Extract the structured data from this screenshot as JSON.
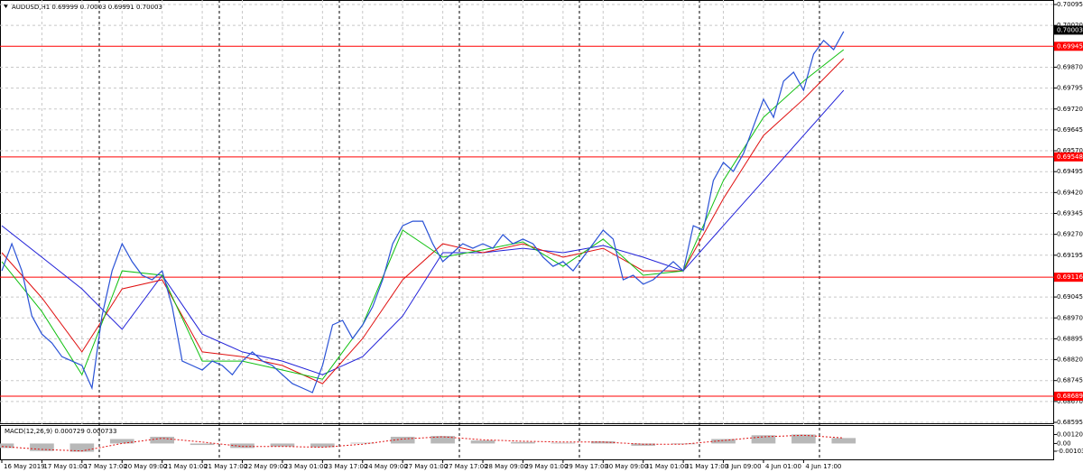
{
  "chart_data": {
    "type": "line",
    "title": "AUDUSD,H1  0.69999 0.70003 0.69991 0.70003",
    "x": [
      0,
      2,
      4,
      6,
      8,
      10,
      12,
      14,
      16,
      18,
      20,
      22,
      24,
      26,
      28,
      30,
      32,
      34,
      36,
      38,
      40,
      42,
      44,
      46,
      48,
      50,
      52,
      54,
      56,
      58,
      60,
      62,
      64,
      66,
      68,
      70,
      72,
      74,
      76,
      78,
      80,
      82,
      84,
      86,
      88,
      90,
      92,
      94,
      96,
      98,
      100,
      102,
      104,
      106,
      108,
      110,
      112,
      114,
      116,
      118,
      120,
      122,
      124,
      126,
      128,
      130,
      132,
      134,
      136,
      138,
      140,
      142,
      144,
      146,
      148,
      150,
      152,
      154,
      156,
      158,
      160,
      162,
      164,
      166,
      168
    ],
    "xlim": [
      0,
      210
    ],
    "xticks": [
      {
        "value": 0,
        "label": "16 May 2019"
      },
      {
        "value": 8,
        "label": "17 May 01:00"
      },
      {
        "value": 16,
        "label": "17 May 17:00"
      },
      {
        "value": 24,
        "label": "20 May 09:00"
      },
      {
        "value": 32,
        "label": "21 May 01:00"
      },
      {
        "value": 40,
        "label": "21 May 17:00"
      },
      {
        "value": 48,
        "label": "22 May 09:00"
      },
      {
        "value": 56,
        "label": "23 May 01:00"
      },
      {
        "value": 64,
        "label": "23 May 17:00"
      },
      {
        "value": 72,
        "label": "24 May 09:00"
      },
      {
        "value": 80,
        "label": "27 May 01:00"
      },
      {
        "value": 88,
        "label": "27 May 17:00"
      },
      {
        "value": 96,
        "label": "28 May 09:00"
      },
      {
        "value": 104,
        "label": "29 May 01:00"
      },
      {
        "value": 112,
        "label": "29 May 17:00"
      },
      {
        "value": 120,
        "label": "30 May 09:00"
      },
      {
        "value": 128,
        "label": "31 May 01:00"
      },
      {
        "value": 136,
        "label": "31 May 17:00"
      },
      {
        "value": 144,
        "label": "3 Jun 09:00"
      },
      {
        "value": 152,
        "label": "4 Jun 01:00"
      },
      {
        "value": 160,
        "label": "4 Jun 17:00"
      }
    ],
    "ylim": [
      0.68595,
      0.70095
    ],
    "yticks": [
      0.70095,
      {
        "value": 0.7002,
        "label": "0.70020"
      },
      {
        "value": 0.6987,
        "label": "0.69870"
      },
      0.69795,
      {
        "value": 0.6972,
        "label": "0.69720"
      },
      0.69645,
      {
        "value": 0.6957,
        "label": "0.69570"
      },
      0.69495,
      {
        "value": 0.6942,
        "label": "0.69420"
      },
      0.69345,
      {
        "value": 0.6927,
        "label": "0.69270"
      },
      0.69195,
      0.69045,
      {
        "value": 0.6897,
        "label": "0.68970"
      },
      0.68895,
      {
        "value": 0.6882,
        "label": "0.68820"
      },
      0.68745,
      {
        "value": 0.6867,
        "label": "0.68670"
      },
      0.68595
    ],
    "grid": true,
    "series": [
      {
        "color": "#2a52d6",
        "values": [
          0.69139,
          0.69236,
          0.69139,
          0.68977,
          0.68912,
          0.6888,
          0.68831,
          0.68815,
          0.68799,
          0.68718,
          0.68977,
          0.69139,
          0.69236,
          0.69172,
          0.69123,
          0.69107,
          0.69139,
          0.6901,
          0.68815,
          0.68799,
          0.68783,
          0.68815,
          0.68799,
          0.68766,
          0.68815,
          0.68848,
          0.68815,
          0.68799,
          0.68766,
          0.68734,
          0.68718,
          0.68702,
          0.68799,
          0.68945,
          0.68961,
          0.68896,
          0.68945,
          0.6901,
          0.69107,
          0.69236,
          0.69301,
          0.69317,
          0.69317,
          0.69236,
          0.69172,
          0.69204,
          0.69236,
          0.6922,
          0.69236,
          0.6922,
          0.69269,
          0.69236,
          0.69253,
          0.69236,
          0.69188,
          0.69155,
          0.69172,
          0.69139,
          0.69188,
          0.69236,
          0.69285,
          0.69253,
          0.69107,
          0.69123,
          0.69091,
          0.69107,
          0.69139,
          0.69172,
          0.69139,
          0.69301,
          0.69285,
          0.69463,
          0.69528,
          0.69496,
          0.6956,
          0.69658,
          0.69755,
          0.6969,
          0.6982,
          0.69852,
          0.69787,
          0.69917,
          0.69966,
          0.69933,
          0.69998
        ]
      }
    ],
    "ma_x": [
      0,
      8,
      16,
      24,
      32,
      40,
      48,
      56,
      64,
      72,
      80,
      88,
      96,
      104,
      112,
      120,
      128,
      136,
      144,
      152,
      160,
      168
    ],
    "moving_averages": [
      {
        "color": "#2020d8",
        "values": [
          0.69301,
          0.69188,
          0.69074,
          0.68929,
          0.69123,
          0.68912,
          0.68848,
          0.68815,
          0.68766,
          0.68831,
          0.68977,
          0.69204,
          0.69204,
          0.6922,
          0.69204,
          0.6923,
          0.69188,
          0.69139,
          0.69301,
          0.69463,
          0.69625,
          0.69787
        ]
      },
      {
        "color": "#e01010",
        "values": [
          0.69204,
          0.69042,
          0.68848,
          0.69074,
          0.69107,
          0.68848,
          0.68831,
          0.68799,
          0.68734,
          0.68896,
          0.69107,
          0.69236,
          0.69204,
          0.69236,
          0.69188,
          0.6922,
          0.69139,
          0.69139,
          0.69398,
          0.69625,
          0.69755,
          0.69901
        ]
      },
      {
        "color": "#10c010",
        "values": [
          0.69172,
          0.68993,
          0.68766,
          0.69139,
          0.69123,
          0.68815,
          0.68815,
          0.68783,
          0.6875,
          0.68945,
          0.69285,
          0.69188,
          0.69214,
          0.69243,
          0.69155,
          0.69253,
          0.69123,
          0.69139,
          0.69463,
          0.6969,
          0.6982,
          0.69933
        ]
      }
    ],
    "levels": [
      0.69945,
      0.69548,
      0.69116,
      0.68689
    ],
    "level_color": "#ff0000",
    "last_price": 0.70003,
    "macd": {
      "title": "MACD(12,26,9) 0.000729 0.000733",
      "ylim": [
        -0.002,
        0.0021
      ],
      "yticks": [
        0.001202,
        {
          "value": 0,
          "label": "0.00"
        },
        -0.001032
      ],
      "histogram_color": "#b8b8b8",
      "signal_color": "#e01010",
      "histogram": [
        -0.0006,
        -0.001,
        -0.0011,
        0.0006,
        0.0009,
        -0.0002,
        -0.0006,
        -0.0004,
        -0.0005,
        0.0001,
        0.0009,
        0.001,
        0.0004,
        0.0002,
        0.0001,
        0.0003,
        -0.0003,
        -0.0001,
        0.0006,
        0.0011,
        0.0012,
        0.000729
      ],
      "signal": [
        -0.0004,
        -0.0008,
        -0.001,
        0,
        0.0007,
        0.0002,
        -0.0004,
        -0.0004,
        -0.0005,
        -0.0001,
        0.0006,
        0.0009,
        0.0005,
        0.0003,
        0.0002,
        0.0002,
        -0.0001,
        -0.0001,
        0.0004,
        0.0009,
        0.0011,
        0.000733
      ]
    }
  }
}
